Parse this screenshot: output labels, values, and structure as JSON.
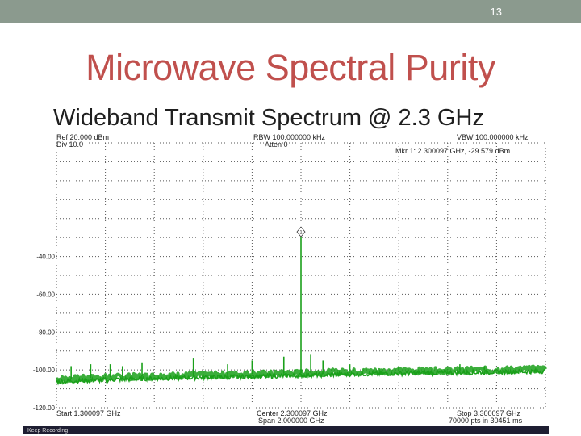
{
  "slide": {
    "number": "13",
    "title": "Microwave Spectral Purity",
    "subtitle": "Wideband Transmit Spectrum @ 2.3 GHz"
  },
  "colors": {
    "title": "#c0504d",
    "topbar": "#8b9a8e",
    "trace": "#1aa01a",
    "grid": "#555555",
    "text": "#222222"
  },
  "analyzer": {
    "ref_level": "Ref 20.000 dBm",
    "div": "Div 10.0",
    "rbw": "RBW 100.000000 kHz",
    "atten": "Atten 0",
    "vbw": "VBW 100.000000 kHz",
    "marker_readout": "Mkr 1: 2.300097 GHz, -29.579 dBm",
    "marker_label": "1",
    "start": "Start 1.300097 GHz",
    "center": "Center 2.300097 GHz",
    "span": "Span 2.000000 GHz",
    "stop": "Stop 3.300097 GHz",
    "points": "70000 pts in 30451 ms",
    "recording": "Keep Recording"
  },
  "chart_data": {
    "type": "line",
    "xlabel": "",
    "ylabel": "",
    "xlim": [
      1.300097,
      3.300097
    ],
    "ylim": [
      -120,
      20
    ],
    "x_unit": "GHz",
    "y_unit": "dBm",
    "grid": true,
    "y_ticks": [
      {
        "value": -40,
        "label": "-40.00"
      },
      {
        "value": -60,
        "label": "-60.00"
      },
      {
        "value": -80,
        "label": "-80.00"
      },
      {
        "value": -100,
        "label": "-100.00"
      },
      {
        "value": -120,
        "label": "-120.00"
      }
    ],
    "noise_floor": [
      {
        "x": 1.300097,
        "y": -105
      },
      {
        "x": 1.5,
        "y": -104
      },
      {
        "x": 1.8,
        "y": -103
      },
      {
        "x": 2.2,
        "y": -102
      },
      {
        "x": 2.5,
        "y": -101
      },
      {
        "x": 2.8,
        "y": -100.5
      },
      {
        "x": 3.1,
        "y": -100
      },
      {
        "x": 3.300097,
        "y": -99.5
      }
    ],
    "peaks": [
      {
        "x": 1.36,
        "y": -98
      },
      {
        "x": 1.44,
        "y": -97
      },
      {
        "x": 1.52,
        "y": -97
      },
      {
        "x": 1.57,
        "y": -98
      },
      {
        "x": 1.65,
        "y": -96
      },
      {
        "x": 1.86,
        "y": -94
      },
      {
        "x": 2.0,
        "y": -97
      },
      {
        "x": 2.1,
        "y": -95
      },
      {
        "x": 2.23,
        "y": -93
      },
      {
        "x": 2.300097,
        "y": -29.579
      },
      {
        "x": 2.34,
        "y": -92
      },
      {
        "x": 2.39,
        "y": -95
      },
      {
        "x": 2.5,
        "y": -97
      },
      {
        "x": 2.7,
        "y": -98
      },
      {
        "x": 2.95,
        "y": -97
      },
      {
        "x": 3.05,
        "y": -98
      }
    ],
    "marker": {
      "x": 2.300097,
      "y": -29.579
    }
  }
}
